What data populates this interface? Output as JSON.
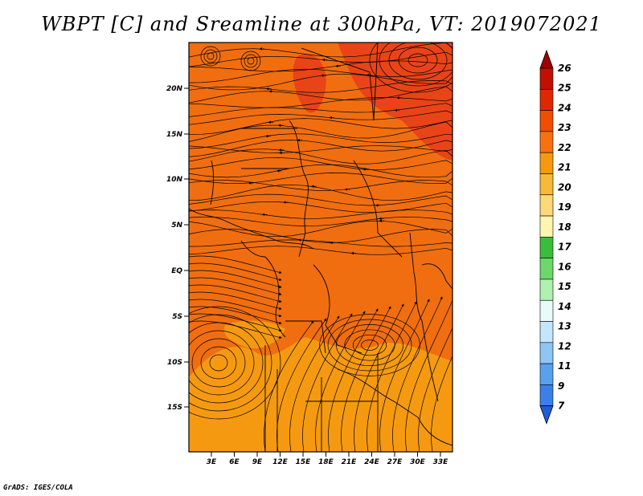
{
  "title": "WBPT [C] and Sreamline at 300hPa, VT: 2019072021",
  "credit": "GrADS: IGES/COLA",
  "map": {
    "variable": "WBPT [C]",
    "overlay": "Sreamline",
    "level": "300hPa",
    "valid_time": "2019072021",
    "lat_labels": [
      "20N",
      "15N",
      "10N",
      "5N",
      "EQ",
      "5S",
      "10S",
      "15S"
    ],
    "lon_labels": [
      "3E",
      "6E",
      "9E",
      "12E",
      "15E",
      "18E",
      "21E",
      "24E",
      "27E",
      "30E",
      "33E"
    ]
  },
  "colorbar": {
    "labels": [
      "26",
      "25",
      "24",
      "23",
      "22",
      "21",
      "20",
      "19",
      "18",
      "17",
      "16",
      "15",
      "14",
      "13",
      "12",
      "11",
      "9",
      "7"
    ],
    "colors": [
      "#a00000",
      "#c01000",
      "#e02800",
      "#f04e00",
      "#f87010",
      "#f59a10",
      "#f8b83a",
      "#fcd878",
      "#fef5b0",
      "#3cbc3c",
      "#6cd86c",
      "#b0f0b0",
      "#e8fbf8",
      "#c4e6fa",
      "#8ec5f5",
      "#5aa0ee",
      "#3a80e6",
      "#1d5ed8"
    ]
  },
  "fill_colors": {
    "dark": "#e84418",
    "mid": "#f06e10",
    "light": "#f59a10"
  }
}
